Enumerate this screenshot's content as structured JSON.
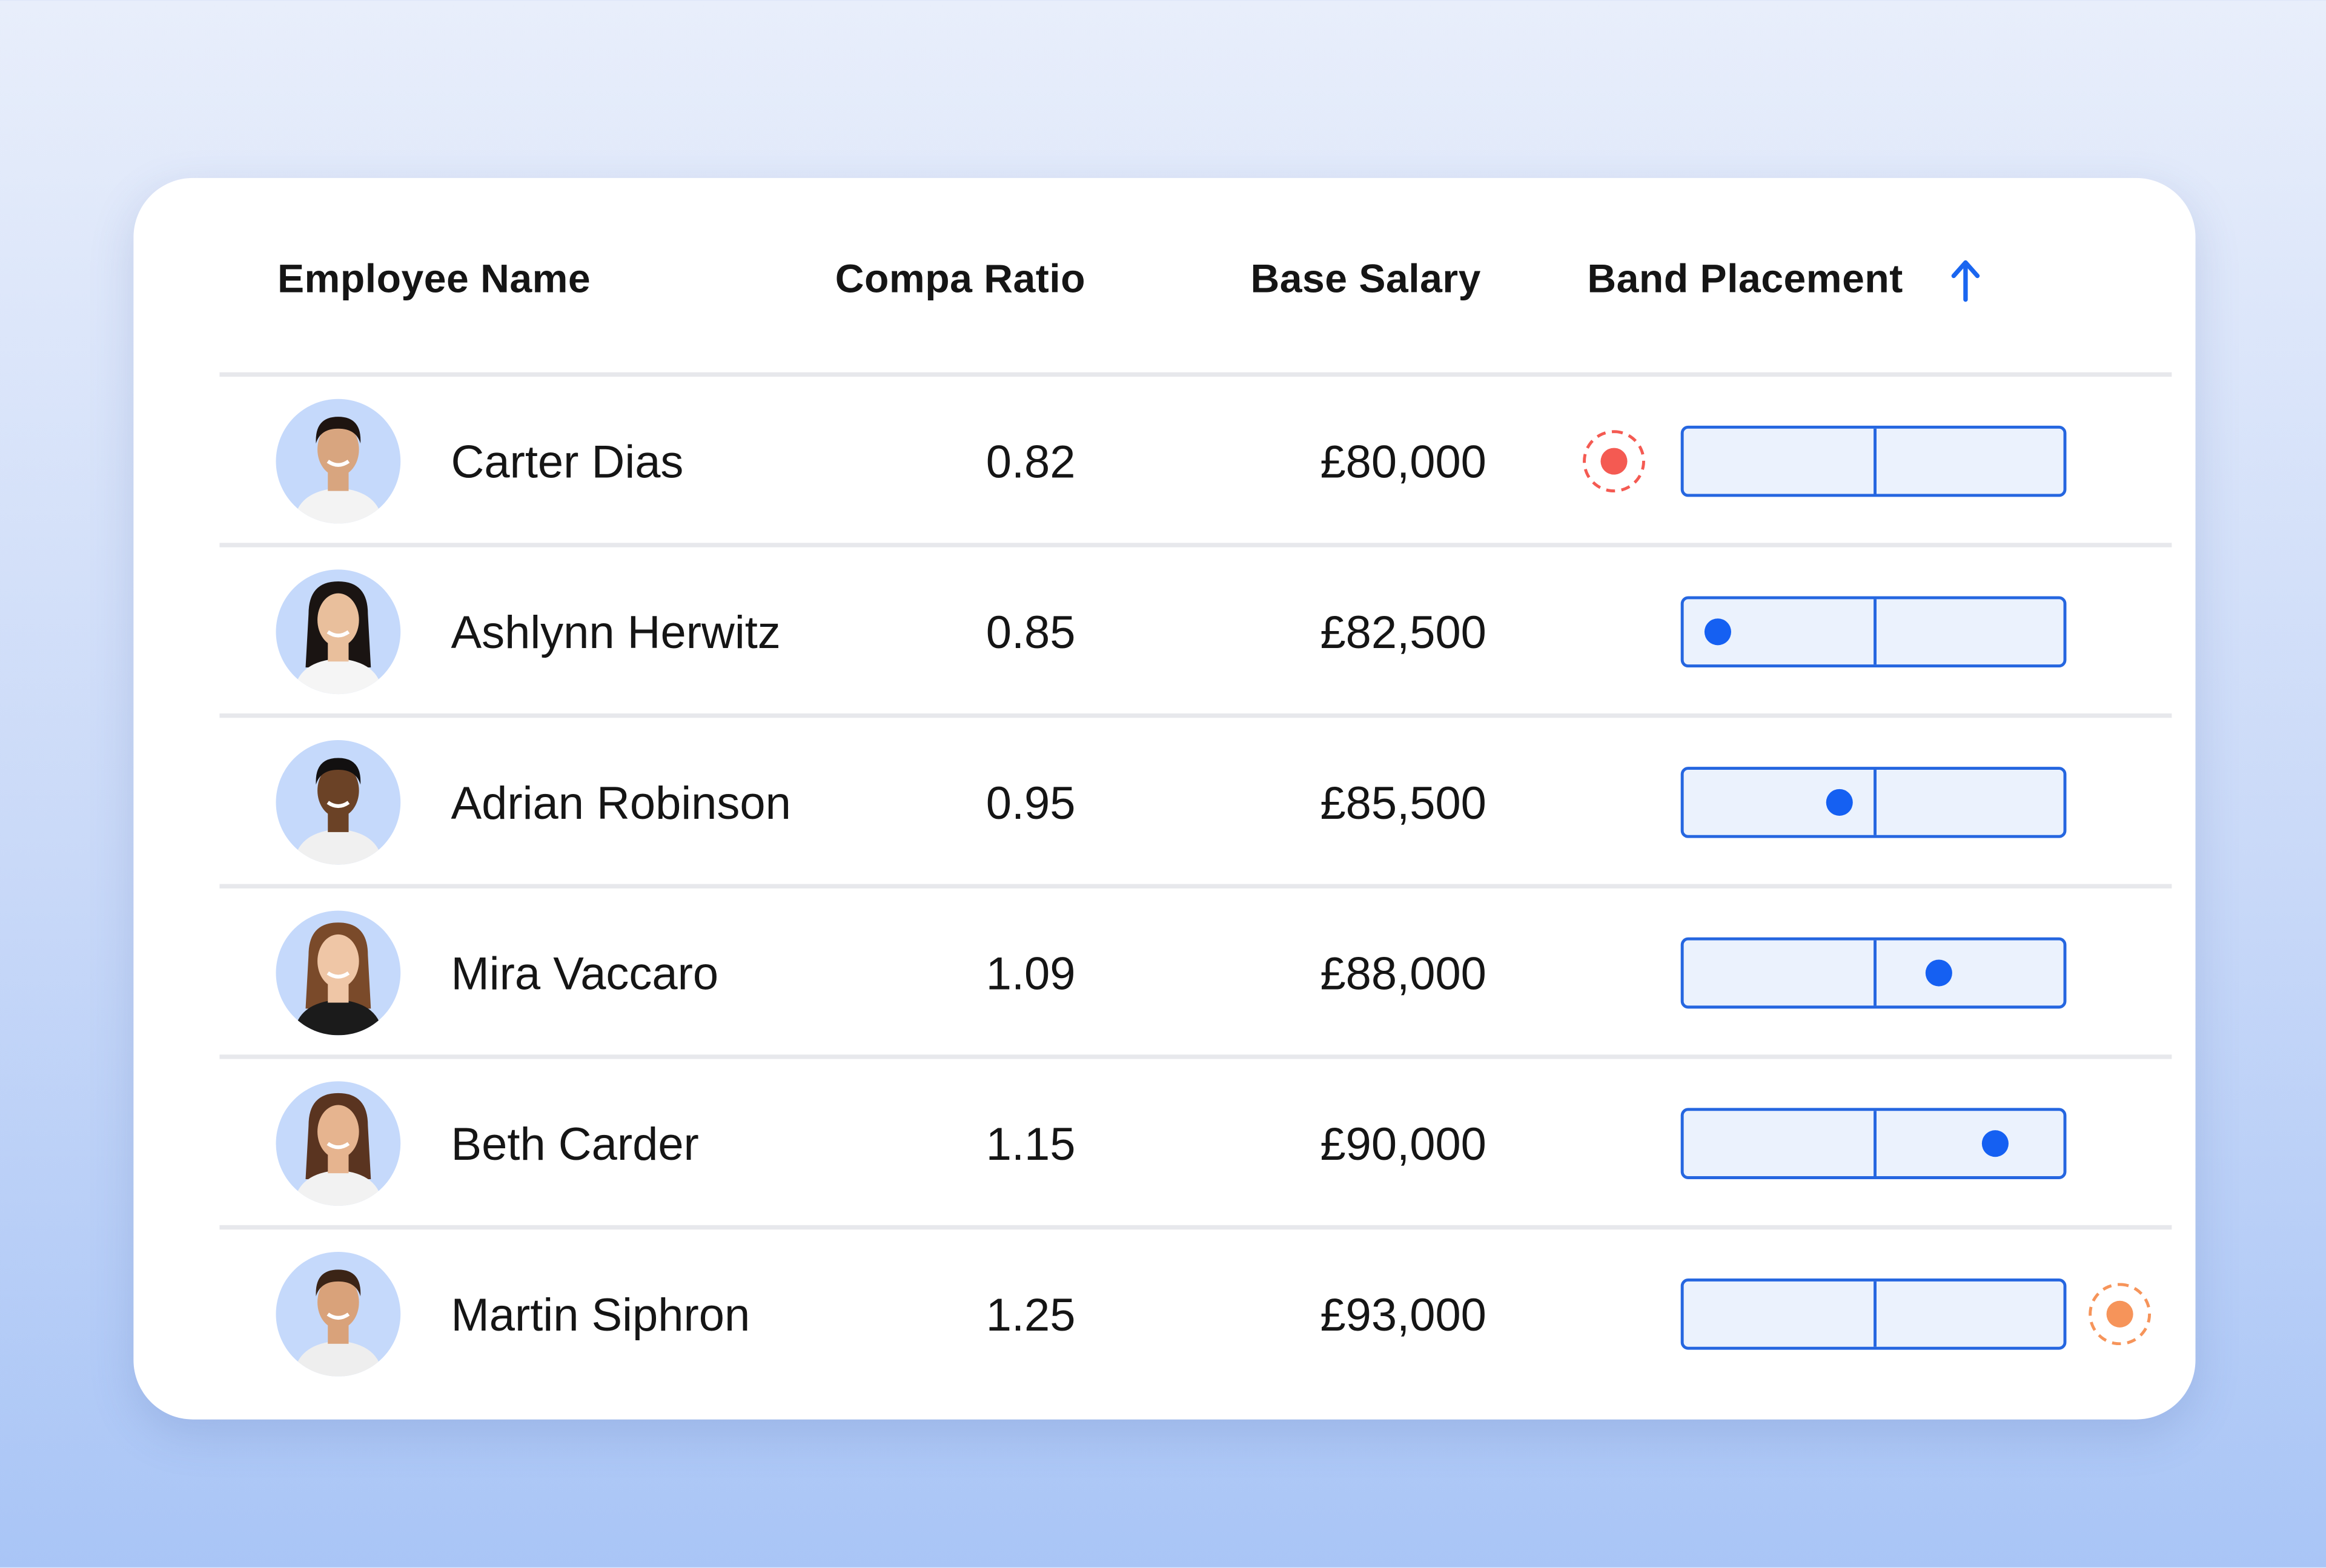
{
  "table": {
    "columns": [
      "Employee Name",
      "Compa Ratio",
      "Base Salary",
      "Band Placement"
    ],
    "sort": {
      "column": "Band Placement",
      "direction": "ascending",
      "icon": "arrow-up-icon"
    },
    "colors": {
      "band_border": "#2566e0",
      "band_fill": "#ebf2fd",
      "in_band_dot": "#1560f2",
      "below_band": "#f45a52",
      "above_band": "#f6945a",
      "sort_arrow": "#1a66f0"
    },
    "rows": [
      {
        "name": "Carter Dias",
        "compa_ratio": "0.82",
        "base_salary": "£80,000",
        "band_status": "below",
        "band_position": null
      },
      {
        "name": "Ashlynn Herwitz",
        "compa_ratio": "0.85",
        "base_salary": "£82,500",
        "band_status": "in",
        "band_position": 0.09
      },
      {
        "name": "Adrian Robinson",
        "compa_ratio": "0.95",
        "base_salary": "£85,500",
        "band_status": "in",
        "band_position": 0.41
      },
      {
        "name": "Mira Vaccaro",
        "compa_ratio": "1.09",
        "base_salary": "£88,000",
        "band_status": "in",
        "band_position": 0.67
      },
      {
        "name": "Beth Carder",
        "compa_ratio": "1.15",
        "base_salary": "£90,000",
        "band_status": "in",
        "band_position": 0.82
      },
      {
        "name": "Martin Siphron",
        "compa_ratio": "1.25",
        "base_salary": "£93,000",
        "band_status": "above",
        "band_position": null
      }
    ]
  }
}
